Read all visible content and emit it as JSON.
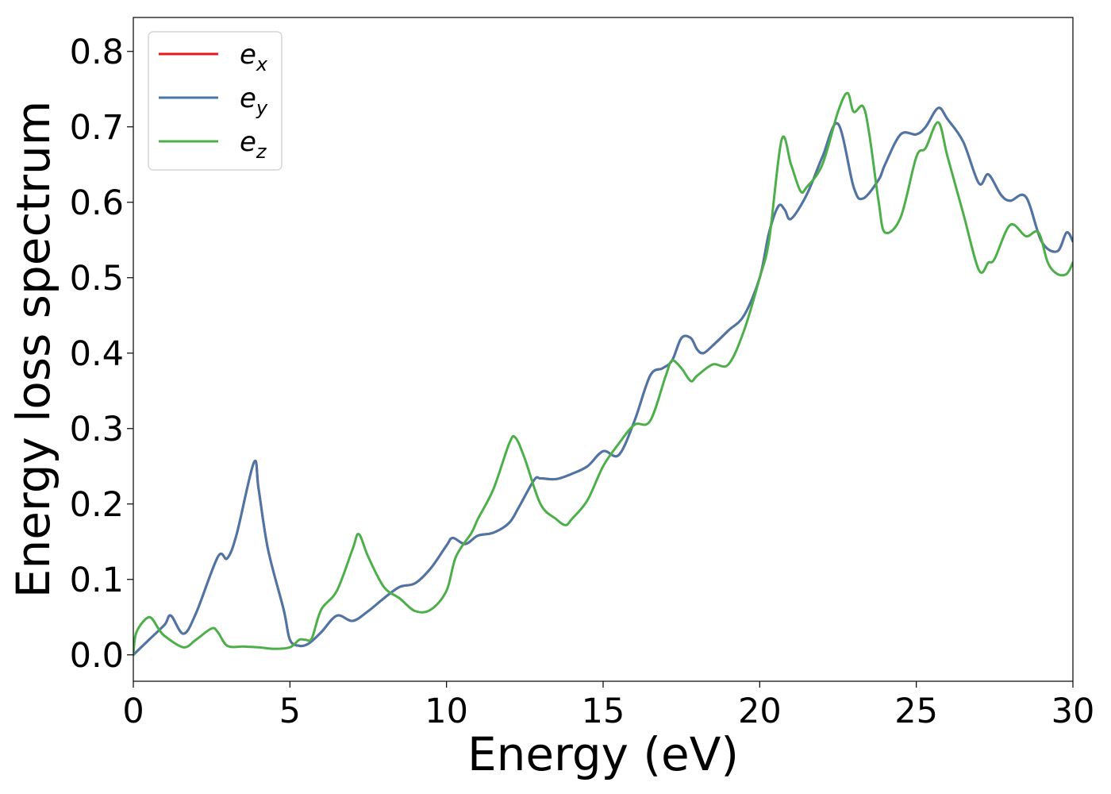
{
  "chart_data": {
    "type": "line",
    "title": "",
    "xlabel": "Energy (eV)",
    "ylabel": "Energy loss spectrum",
    "xlim": [
      0,
      30
    ],
    "ylim": [
      -0.035,
      0.845
    ],
    "xticks": [
      0,
      5,
      10,
      15,
      20,
      25,
      30
    ],
    "xtick_labels": [
      "0",
      "5",
      "10",
      "15",
      "20",
      "25",
      "30"
    ],
    "yticks": [
      0.0,
      0.1,
      0.2,
      0.3,
      0.4,
      0.5,
      0.6,
      0.7,
      0.8
    ],
    "ytick_labels": [
      "0.0",
      "0.1",
      "0.2",
      "0.3",
      "0.4",
      "0.5",
      "0.6",
      "0.7",
      "0.8"
    ],
    "grid": false,
    "legend_position": "top-left",
    "series": [
      {
        "name": "e_x",
        "label_main": "e",
        "label_sub": "x",
        "color": "#e41a1c",
        "x": [
          0,
          0.5,
          1.0,
          1.2,
          1.6,
          2.0,
          2.7,
          3.0,
          3.3,
          3.85,
          4.0,
          4.3,
          4.8,
          5.0,
          5.3,
          5.6,
          6.0,
          6.5,
          7.0,
          7.5,
          8.0,
          8.5,
          9.0,
          9.5,
          10.0,
          10.2,
          10.6,
          11.0,
          11.5,
          12.0,
          12.3,
          12.8,
          13.0,
          13.5,
          14.0,
          14.5,
          15.0,
          15.5,
          16.0,
          16.5,
          16.9,
          17.2,
          17.5,
          17.8,
          18.0,
          18.2,
          18.5,
          19.0,
          19.5,
          20.0,
          20.3,
          20.6,
          20.8,
          21.0,
          21.5,
          22.0,
          22.5,
          23.0,
          23.3,
          23.8,
          24.0,
          24.5,
          25.0,
          25.3,
          25.7,
          26.0,
          26.5,
          27.0,
          27.3,
          27.7,
          28.0,
          28.5,
          29.0,
          29.5,
          29.8,
          30.0
        ],
        "y": [
          0.0,
          0.02,
          0.04,
          0.052,
          0.028,
          0.055,
          0.13,
          0.128,
          0.16,
          0.255,
          0.22,
          0.14,
          0.06,
          0.02,
          0.012,
          0.015,
          0.03,
          0.052,
          0.045,
          0.058,
          0.075,
          0.09,
          0.095,
          0.115,
          0.145,
          0.155,
          0.147,
          0.158,
          0.162,
          0.175,
          0.195,
          0.232,
          0.234,
          0.233,
          0.24,
          0.25,
          0.27,
          0.265,
          0.31,
          0.37,
          0.38,
          0.39,
          0.42,
          0.42,
          0.405,
          0.4,
          0.41,
          0.43,
          0.45,
          0.5,
          0.56,
          0.595,
          0.59,
          0.578,
          0.61,
          0.66,
          0.704,
          0.62,
          0.605,
          0.63,
          0.65,
          0.69,
          0.69,
          0.7,
          0.725,
          0.71,
          0.68,
          0.625,
          0.637,
          0.61,
          0.602,
          0.607,
          0.548,
          0.535,
          0.56,
          0.548
        ]
      },
      {
        "name": "e_y",
        "label_main": "e",
        "label_sub": "y",
        "color": "#4a76a8",
        "x": [
          0,
          0.5,
          1.0,
          1.2,
          1.6,
          2.0,
          2.7,
          3.0,
          3.3,
          3.85,
          4.0,
          4.3,
          4.8,
          5.0,
          5.3,
          5.6,
          6.0,
          6.5,
          7.0,
          7.5,
          8.0,
          8.5,
          9.0,
          9.5,
          10.0,
          10.2,
          10.6,
          11.0,
          11.5,
          12.0,
          12.3,
          12.8,
          13.0,
          13.5,
          14.0,
          14.5,
          15.0,
          15.5,
          16.0,
          16.5,
          16.9,
          17.2,
          17.5,
          17.8,
          18.0,
          18.2,
          18.5,
          19.0,
          19.5,
          20.0,
          20.3,
          20.6,
          20.8,
          21.0,
          21.5,
          22.0,
          22.5,
          23.0,
          23.3,
          23.8,
          24.0,
          24.5,
          25.0,
          25.3,
          25.7,
          26.0,
          26.5,
          27.0,
          27.3,
          27.7,
          28.0,
          28.5,
          29.0,
          29.5,
          29.8,
          30.0
        ],
        "y": [
          0.0,
          0.02,
          0.04,
          0.052,
          0.028,
          0.055,
          0.13,
          0.128,
          0.16,
          0.255,
          0.22,
          0.14,
          0.06,
          0.02,
          0.012,
          0.015,
          0.03,
          0.052,
          0.045,
          0.058,
          0.075,
          0.09,
          0.095,
          0.115,
          0.145,
          0.155,
          0.147,
          0.158,
          0.162,
          0.175,
          0.195,
          0.232,
          0.234,
          0.233,
          0.24,
          0.25,
          0.27,
          0.265,
          0.31,
          0.37,
          0.38,
          0.39,
          0.42,
          0.42,
          0.405,
          0.4,
          0.41,
          0.43,
          0.45,
          0.5,
          0.56,
          0.595,
          0.59,
          0.578,
          0.61,
          0.66,
          0.704,
          0.62,
          0.605,
          0.63,
          0.65,
          0.69,
          0.69,
          0.7,
          0.725,
          0.71,
          0.68,
          0.625,
          0.637,
          0.61,
          0.602,
          0.607,
          0.548,
          0.535,
          0.56,
          0.548
        ]
      },
      {
        "name": "e_z",
        "label_main": "e",
        "label_sub": "z",
        "color": "#4daf4a",
        "x": [
          0,
          0.1,
          0.5,
          0.8,
          1.0,
          1.6,
          2.0,
          2.5,
          2.7,
          3.0,
          3.5,
          4.0,
          4.5,
          5.0,
          5.3,
          5.5,
          5.7,
          6.0,
          6.5,
          7.0,
          7.2,
          7.5,
          8.0,
          8.5,
          9.0,
          9.5,
          10.0,
          10.3,
          10.8,
          11.0,
          11.5,
          12.0,
          12.2,
          12.5,
          13.0,
          13.5,
          13.8,
          14.0,
          14.5,
          15.0,
          15.5,
          16.0,
          16.5,
          17.0,
          17.2,
          17.5,
          17.8,
          18.0,
          18.5,
          19.0,
          19.5,
          20.0,
          20.3,
          20.7,
          21.0,
          21.3,
          21.5,
          22.0,
          22.5,
          22.8,
          23.0,
          23.3,
          23.5,
          23.8,
          24.0,
          24.5,
          25.0,
          25.3,
          25.7,
          26.0,
          26.5,
          27.0,
          27.3,
          27.5,
          28.0,
          28.5,
          28.9,
          29.2,
          29.5,
          29.8,
          30.0
        ],
        "y": [
          0.0,
          0.03,
          0.05,
          0.035,
          0.025,
          0.01,
          0.02,
          0.035,
          0.03,
          0.012,
          0.011,
          0.01,
          0.008,
          0.01,
          0.02,
          0.02,
          0.022,
          0.06,
          0.085,
          0.14,
          0.16,
          0.13,
          0.09,
          0.075,
          0.058,
          0.06,
          0.085,
          0.13,
          0.162,
          0.18,
          0.22,
          0.28,
          0.288,
          0.26,
          0.2,
          0.18,
          0.172,
          0.18,
          0.205,
          0.25,
          0.28,
          0.305,
          0.31,
          0.37,
          0.39,
          0.38,
          0.363,
          0.37,
          0.385,
          0.385,
          0.43,
          0.5,
          0.55,
          0.683,
          0.65,
          0.615,
          0.62,
          0.65,
          0.72,
          0.745,
          0.72,
          0.727,
          0.69,
          0.6,
          0.56,
          0.58,
          0.66,
          0.672,
          0.706,
          0.66,
          0.585,
          0.51,
          0.52,
          0.525,
          0.57,
          0.555,
          0.56,
          0.52,
          0.505,
          0.505,
          0.52
        ]
      }
    ]
  }
}
